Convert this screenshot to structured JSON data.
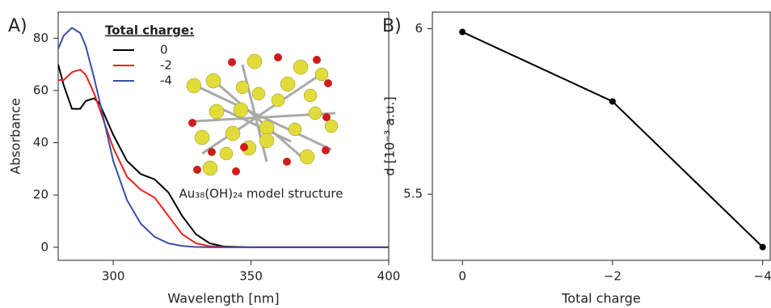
{
  "chart_data": [
    {
      "type": "line",
      "panel_label": "A)",
      "xlabel": "Wavelength [nm]",
      "ylabel": "Absorbance",
      "legend_title": "Total charge:",
      "legend": "upper-center",
      "annotation": "Au₃₈(OH)₂₄ model structure",
      "x": [
        280,
        282,
        285,
        288,
        290,
        293,
        295,
        300,
        305,
        310,
        315,
        320,
        325,
        330,
        335,
        340,
        350,
        400
      ],
      "series": [
        {
          "name": "0",
          "color": "#000000",
          "values": [
            70,
            62,
            53,
            53,
            56,
            57,
            55,
            43,
            33,
            28,
            26,
            21,
            12,
            5,
            1.5,
            0.3,
            0,
            0
          ]
        },
        {
          "name": "-2",
          "color": "#e8221b",
          "values": [
            64,
            64,
            67,
            68,
            66,
            59,
            53,
            38,
            27,
            22,
            19,
            12,
            5,
            1.5,
            0.4,
            0.1,
            0,
            0
          ]
        },
        {
          "name": "-4",
          "color": "#3a4fa6",
          "values": [
            76,
            81,
            84,
            82,
            77,
            65,
            56,
            33,
            18,
            9,
            4,
            1.5,
            0.5,
            0.1,
            0,
            0,
            0,
            0
          ]
        }
      ],
      "xlim": [
        280,
        400
      ],
      "xticks": [
        300,
        350,
        400
      ],
      "ylim": [
        -5,
        90
      ],
      "yticks": [
        0,
        20,
        40,
        60,
        80
      ]
    },
    {
      "type": "line",
      "panel_label": "B)",
      "xlabel": "Total charge",
      "ylabel": "d [10⁻³ a.u.]",
      "x": [
        0,
        -2,
        -4
      ],
      "series": [
        {
          "color": "#000000",
          "marker": "o",
          "values": [
            5.99,
            5.78,
            5.34
          ]
        }
      ],
      "xlim": [
        0.4,
        -4.1
      ],
      "xticks": [
        0,
        {
          "value": -2,
          "label": "−2"
        },
        {
          "value": -4,
          "label": "−4"
        }
      ],
      "ylim": [
        5.3,
        6.05
      ],
      "yticks": [
        5.5,
        6
      ]
    }
  ]
}
